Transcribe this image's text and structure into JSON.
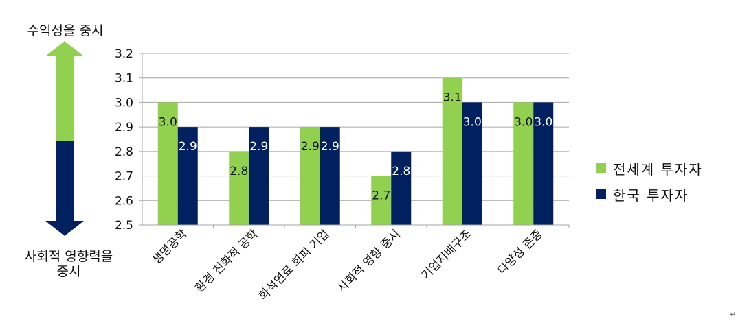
{
  "side": {
    "top_label": "수익성을 중시",
    "bottom_label_line1": "사회적 영향력을",
    "bottom_label_line2": "중시"
  },
  "colors": {
    "series1": "#92d050",
    "series2": "#002060",
    "arrow_up": "#92d050",
    "arrow_down": "#002060",
    "grid": "#a6a6a6"
  },
  "corner_mark": "↵",
  "chart_data": {
    "type": "bar",
    "categories": [
      "생명공학",
      "환경 친화적 공학",
      "화석연료 회피 기업",
      "사회적 영향 중시",
      "기업지배구조",
      "다양성 존중"
    ],
    "series": [
      {
        "name": "전세계 투자자",
        "values": [
          3.0,
          2.8,
          2.9,
          2.7,
          3.1,
          3.0
        ],
        "labels": [
          "3.0",
          "2.8",
          "2.9",
          "2.7",
          "3.1",
          "3.0"
        ]
      },
      {
        "name": "한국 투자자",
        "values": [
          2.9,
          2.9,
          2.9,
          2.8,
          3.0,
          3.0
        ],
        "labels": [
          "2.9",
          "2.9",
          "2.9",
          "2.8",
          "3.0",
          "3.0"
        ]
      }
    ],
    "ylim": [
      2.5,
      3.2
    ],
    "yticks": [
      "2.5",
      "2.6",
      "2.7",
      "2.8",
      "2.9",
      "3.0",
      "3.1",
      "3.2"
    ],
    "grid": true,
    "legend": "right"
  }
}
